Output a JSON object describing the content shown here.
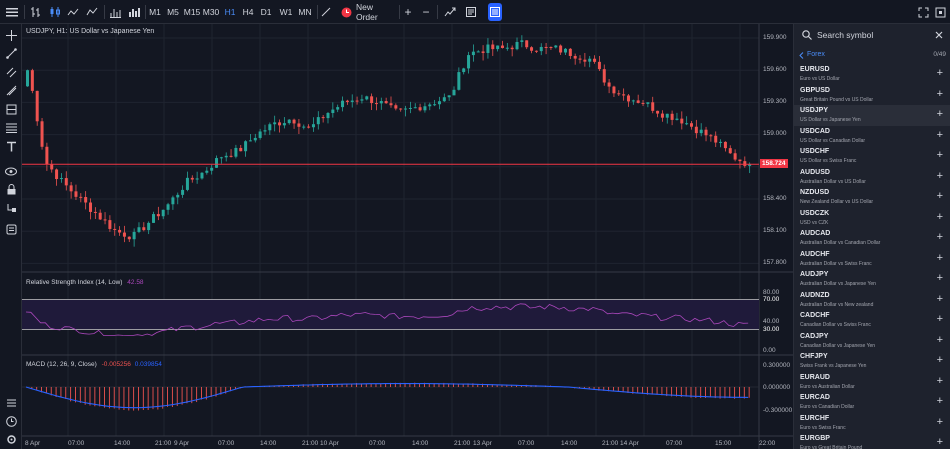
{
  "toolbar": {
    "timeframes": [
      "M1",
      "M5",
      "M15",
      "M30",
      "H1",
      "H4",
      "D1",
      "W1",
      "MN"
    ],
    "active_timeframe": "H1",
    "new_order_label": "New Order",
    "plus_label": "+",
    "minus_label": "−"
  },
  "chart": {
    "title": "USDJPY, H1: US Dollar vs Japanese Yen",
    "price_ticks": [
      "159.900",
      "159.600",
      "159.300",
      "159.000",
      "158.700",
      "158.400",
      "158.100",
      "157.800"
    ],
    "current_price": "158.724",
    "time_labels": [
      "8 Apr",
      "07:00",
      "14:00",
      "21:00",
      "9 Apr",
      "07:00",
      "14:00",
      "21:00",
      "10 Apr",
      "07:00",
      "14:00",
      "21:00",
      "13 Apr",
      "07:00",
      "14:00",
      "21:00",
      "14 Apr",
      "07:00",
      "15:00",
      "22:00"
    ],
    "rsi_title": "Relative Strength Index (14, Low)",
    "rsi_value": "42.58",
    "rsi_ticks": [
      "80.00",
      "70.00",
      "40.00",
      "30.00",
      "0.00"
    ],
    "macd_title": "MACD (12, 26, 9, Close)",
    "macd_value1": "-0.005256",
    "macd_value2": "0.039854",
    "macd_ticks": [
      "0.300000",
      "0.000000",
      "-0.300000"
    ],
    "colors": {
      "up": "#26a69a",
      "down": "#ef5350",
      "rsi": "#ab47bc",
      "macd_signal": "#2962ff",
      "price_line": "#f23645"
    }
  },
  "chart_data": {
    "type": "candlestick",
    "symbol": "USDJPY",
    "timeframe": "H1",
    "price_range": [
      157.74,
      160.02
    ],
    "current_price": 158.724,
    "approx_closes": [
      159.65,
      158.75,
      158.55,
      158.4,
      158.25,
      158.1,
      158.05,
      158.2,
      158.35,
      158.55,
      158.65,
      158.8,
      158.85,
      159.0,
      159.1,
      159.15,
      159.05,
      159.2,
      159.3,
      159.35,
      159.3,
      159.2,
      159.25,
      159.3,
      159.35,
      159.75,
      159.8,
      159.8,
      159.85,
      159.8,
      159.8,
      159.75,
      159.7,
      159.45,
      159.35,
      159.3,
      159.2,
      159.15,
      159.05,
      158.95,
      158.8,
      158.72
    ],
    "rsi_levels": [
      70,
      30
    ],
    "macd": {
      "histogram_sign": "negative",
      "zero_line": 0
    }
  },
  "panel": {
    "search_placeholder": "Search symbol",
    "category": "Forex",
    "count": "0/49",
    "symbols": [
      {
        "code": "EURUSD",
        "desc": "Euro vs US Dollar"
      },
      {
        "code": "GBPUSD",
        "desc": "Great Britain Pound vs US Dollar"
      },
      {
        "code": "USDJPY",
        "desc": "US Dollar vs Japanese Yen"
      },
      {
        "code": "USDCAD",
        "desc": "US Dollar vs Canadian Dollar"
      },
      {
        "code": "USDCHF",
        "desc": "US Dollar vs Swiss Franc"
      },
      {
        "code": "AUDUSD",
        "desc": "Australian Dollar vs US Dollar"
      },
      {
        "code": "NZDUSD",
        "desc": "New Zealand Dollar vs US Dollar"
      },
      {
        "code": "USDCZK",
        "desc": "USD vs CZK"
      },
      {
        "code": "AUDCAD",
        "desc": "Australian Dollar vs Canadian Dollar"
      },
      {
        "code": "AUDCHF",
        "desc": "Australian Dollar vs Swiss Franc"
      },
      {
        "code": "AUDJPY",
        "desc": "Australian Dollar vs Japanese Yen"
      },
      {
        "code": "AUDNZD",
        "desc": "Australian Dollar vs New zealand"
      },
      {
        "code": "CADCHF",
        "desc": "Canadian Dollar vs Swiss Franc"
      },
      {
        "code": "CADJPY",
        "desc": "Canadian Dollar vs Japanese Yen"
      },
      {
        "code": "CHFJPY",
        "desc": "Swiss Frank vs Japanese Yen"
      },
      {
        "code": "EURAUD",
        "desc": "Euro vs Australian Dollar"
      },
      {
        "code": "EURCAD",
        "desc": "Euro vs Canadian Dollar"
      },
      {
        "code": "EURCHF",
        "desc": "Euro vs Swiss Franc"
      },
      {
        "code": "EURGBP",
        "desc": "Euro vs Great Britain Pound"
      }
    ]
  }
}
